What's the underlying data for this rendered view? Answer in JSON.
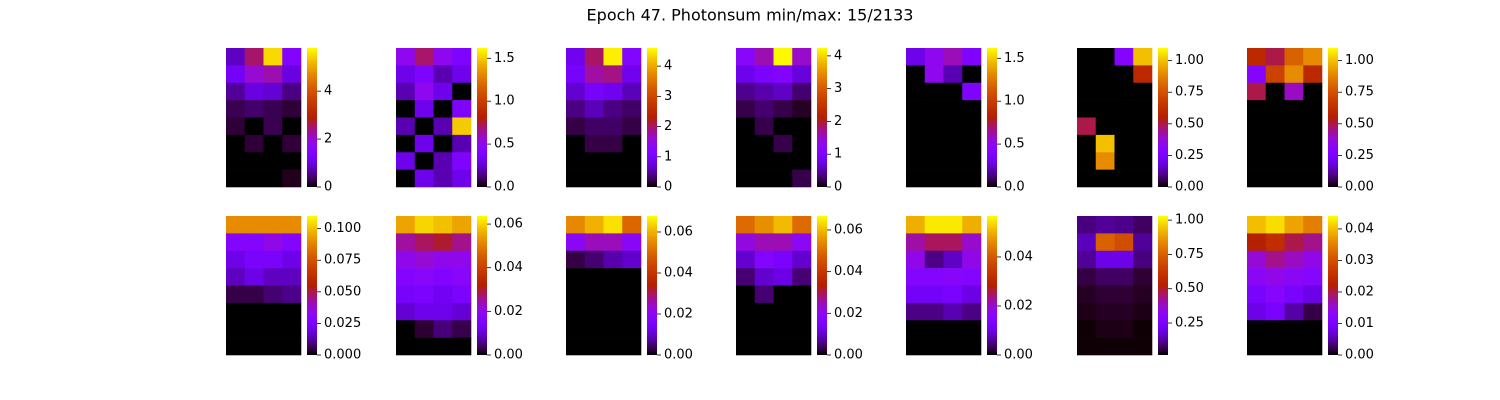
{
  "title": "Epoch 47. Photonsum min/max: 15/2133",
  "chart_data": [
    {
      "type": "heatmap",
      "colormap": "gnuplot",
      "zlim": [
        0,
        5.8
      ],
      "zticks": [
        0,
        2,
        4
      ],
      "values": [
        [
          0.8,
          2.5,
          5.5,
          1.5
        ],
        [
          1.2,
          2.0,
          2.2,
          1.0
        ],
        [
          0.6,
          1.0,
          0.9,
          0.5
        ],
        [
          0.3,
          0.4,
          0.3,
          0.2
        ],
        [
          0.2,
          0,
          0.3,
          0
        ],
        [
          0,
          0.2,
          0,
          0.2
        ],
        [
          0,
          0,
          0,
          0
        ],
        [
          0,
          0,
          0,
          0.1
        ]
      ]
    },
    {
      "type": "heatmap",
      "colormap": "gnuplot",
      "zlim": [
        0,
        1.62
      ],
      "zticks": [
        {
          "value": 0,
          "label": "0.0"
        },
        0.5,
        {
          "value": 1,
          "label": "1.0"
        },
        1.5
      ],
      "values": [
        [
          0.5,
          0.7,
          0.5,
          0.4
        ],
        [
          0.3,
          0.4,
          0.2,
          0.3
        ],
        [
          0.2,
          0.5,
          0.3,
          0
        ],
        [
          0,
          0.3,
          0,
          0.4
        ],
        [
          0.2,
          0,
          0.2,
          1.5
        ],
        [
          0,
          0.3,
          0,
          0.2
        ],
        [
          0.3,
          0,
          0.2,
          0.4
        ],
        [
          0,
          0.3,
          0.2,
          0.3
        ]
      ]
    },
    {
      "type": "heatmap",
      "colormap": "gnuplot",
      "zlim": [
        0,
        4.6
      ],
      "zticks": [
        0,
        1,
        2,
        3,
        4
      ],
      "values": [
        [
          0.9,
          2.0,
          4.5,
          1.2
        ],
        [
          1.0,
          1.8,
          1.9,
          0.9
        ],
        [
          0.7,
          1.0,
          0.9,
          0.6
        ],
        [
          0.4,
          0.6,
          0.4,
          0.3
        ],
        [
          0.2,
          0.3,
          0.3,
          0.2
        ],
        [
          0,
          0.2,
          0.2,
          0
        ],
        [
          0,
          0,
          0,
          0
        ],
        [
          0,
          0,
          0,
          0
        ]
      ]
    },
    {
      "type": "heatmap",
      "colormap": "gnuplot",
      "zlim": [
        0,
        4.24
      ],
      "zticks": [
        0,
        1,
        2,
        3,
        4
      ],
      "values": [
        [
          1.2,
          1.6,
          4.2,
          1.5
        ],
        [
          0.8,
          1.0,
          1.1,
          0.7
        ],
        [
          0.4,
          0.5,
          0.6,
          0.3
        ],
        [
          0.2,
          0.3,
          0.2,
          0.1
        ],
        [
          0,
          0.2,
          0,
          0
        ],
        [
          0,
          0,
          0.2,
          0
        ],
        [
          0,
          0,
          0,
          0
        ],
        [
          0,
          0,
          0,
          0.2
        ]
      ]
    },
    {
      "type": "heatmap",
      "colormap": "gnuplot",
      "zlim": [
        0,
        1.62
      ],
      "zticks": [
        {
          "value": 0,
          "label": "0.0"
        },
        0.5,
        {
          "value": 1,
          "label": "1.0"
        },
        1.5
      ],
      "values": [
        [
          0.3,
          0.5,
          0.6,
          0.4
        ],
        [
          0,
          0.5,
          0.2,
          0
        ],
        [
          0,
          0,
          0,
          0.4
        ],
        [
          0,
          0,
          0,
          0
        ],
        [
          0,
          0,
          0,
          0
        ],
        [
          0,
          0,
          0,
          0
        ],
        [
          0,
          0,
          0,
          0
        ],
        [
          0,
          0,
          0,
          0
        ]
      ]
    },
    {
      "type": "heatmap",
      "colormap": "gnuplot",
      "zlim": [
        0,
        1.1
      ],
      "zticks": [
        {
          "value": 0,
          "label": "0.00"
        },
        0.25,
        {
          "value": 0.5,
          "label": "0.50"
        },
        0.75,
        {
          "value": 1,
          "label": "1.00"
        }
      ],
      "values": [
        [
          0,
          0,
          0.3,
          1.0
        ],
        [
          0,
          0,
          0,
          0.6
        ],
        [
          0,
          0,
          0,
          0
        ],
        [
          0,
          0,
          0,
          0
        ],
        [
          0.5,
          0,
          0,
          0
        ],
        [
          0,
          1.0,
          0,
          0
        ],
        [
          0,
          0.9,
          0,
          0
        ],
        [
          0,
          0,
          0,
          0
        ]
      ]
    },
    {
      "type": "heatmap",
      "colormap": "gnuplot",
      "zlim": [
        0,
        1.1
      ],
      "zticks": [
        {
          "value": 0,
          "label": "0.00"
        },
        0.25,
        {
          "value": 0.5,
          "label": "0.50"
        },
        0.75,
        {
          "value": 1,
          "label": "1.00"
        }
      ],
      "values": [
        [
          0.6,
          0.5,
          0.8,
          0.9
        ],
        [
          0.3,
          0.7,
          0.9,
          0.6
        ],
        [
          0.5,
          0,
          0.4,
          0
        ],
        [
          0,
          0,
          0,
          0
        ],
        [
          0,
          0,
          0,
          0
        ],
        [
          0,
          0,
          0,
          0
        ],
        [
          0,
          0,
          0,
          0
        ],
        [
          0,
          0,
          0,
          0
        ]
      ]
    },
    {
      "type": "heatmap",
      "colormap": "gnuplot",
      "zlim": [
        0,
        0.11
      ],
      "zticks": [
        {
          "value": 0,
          "label": "0.000"
        },
        0.025,
        {
          "value": 0.05,
          "label": "0.050"
        },
        0.075,
        {
          "value": 0.1,
          "label": "0.100"
        }
      ],
      "values": [
        [
          0.09,
          0.09,
          0.09,
          0.09
        ],
        [
          0.03,
          0.03,
          0.035,
          0.03
        ],
        [
          0.02,
          0.025,
          0.025,
          0.02
        ],
        [
          0.015,
          0.02,
          0.015,
          0.015
        ],
        [
          0.005,
          0.005,
          0.008,
          0.01
        ],
        [
          0,
          0,
          0,
          0
        ],
        [
          0,
          0,
          0,
          0
        ],
        [
          0,
          0,
          0,
          0
        ]
      ]
    },
    {
      "type": "heatmap",
      "colormap": "gnuplot",
      "zlim": [
        0,
        0.0637
      ],
      "zticks": [
        {
          "value": 0,
          "label": "0.00"
        },
        0.02,
        0.04,
        0.06
      ],
      "values": [
        [
          0.055,
          0.06,
          0.058,
          0.055
        ],
        [
          0.025,
          0.028,
          0.03,
          0.026
        ],
        [
          0.02,
          0.022,
          0.02,
          0.02
        ],
        [
          0.017,
          0.018,
          0.016,
          0.018
        ],
        [
          0.014,
          0.015,
          0.013,
          0.015
        ],
        [
          0.01,
          0.012,
          0.012,
          0.01
        ],
        [
          0,
          0.002,
          0.005,
          0.003
        ],
        [
          0,
          0,
          0,
          0
        ]
      ]
    },
    {
      "type": "heatmap",
      "colormap": "gnuplot",
      "zlim": [
        0,
        0.0678
      ],
      "zticks": [
        {
          "value": 0,
          "label": "0.00"
        },
        0.02,
        0.04,
        0.06
      ],
      "values": [
        [
          0.055,
          0.06,
          0.065,
          0.05
        ],
        [
          0.02,
          0.025,
          0.025,
          0.02
        ],
        [
          0.003,
          0.005,
          0.008,
          0.01
        ],
        [
          0,
          0,
          0,
          0
        ],
        [
          0,
          0,
          0,
          0
        ],
        [
          0,
          0,
          0,
          0
        ],
        [
          0,
          0,
          0,
          0
        ],
        [
          0,
          0,
          0,
          0
        ]
      ]
    },
    {
      "type": "heatmap",
      "colormap": "gnuplot",
      "zlim": [
        0,
        0.0667
      ],
      "zticks": [
        {
          "value": 0,
          "label": "0.00"
        },
        0.02,
        0.04,
        0.06
      ],
      "values": [
        [
          0.05,
          0.055,
          0.06,
          0.05
        ],
        [
          0.022,
          0.025,
          0.025,
          0.02
        ],
        [
          0.01,
          0.018,
          0.015,
          0.01
        ],
        [
          0.005,
          0.01,
          0.012,
          0.005
        ],
        [
          0,
          0.005,
          0,
          0
        ],
        [
          0,
          0,
          0,
          0
        ],
        [
          0,
          0,
          0,
          0
        ],
        [
          0,
          0,
          0,
          0
        ]
      ]
    },
    {
      "type": "heatmap",
      "colormap": "gnuplot",
      "zlim": [
        0,
        0.0567
      ],
      "zticks": [
        {
          "value": 0,
          "label": "0.00"
        },
        0.02,
        0.04
      ],
      "values": [
        [
          0.05,
          0.055,
          0.055,
          0.05
        ],
        [
          0.022,
          0.025,
          0.025,
          0.02
        ],
        [
          0.018,
          0.005,
          0.008,
          0.018
        ],
        [
          0.015,
          0.015,
          0.016,
          0.015
        ],
        [
          0.012,
          0.012,
          0.013,
          0.01
        ],
        [
          0.005,
          0.005,
          0.007,
          0.005
        ],
        [
          0,
          0,
          0,
          0
        ],
        [
          0,
          0,
          0,
          0
        ]
      ]
    },
    {
      "type": "heatmap",
      "colormap": "gnuplot",
      "zlim": [
        0.017,
        1.03
      ],
      "zticks": [
        0.25,
        {
          "value": 0.5,
          "label": "0.50"
        },
        0.75,
        {
          "value": 1,
          "label": "1.00"
        }
      ],
      "values": [
        [
          0.1,
          0.12,
          0.11,
          0.08
        ],
        [
          0.15,
          0.75,
          0.7,
          0.12
        ],
        [
          0.12,
          0.2,
          0.2,
          0.1
        ],
        [
          0.06,
          0.08,
          0.08,
          0.05
        ],
        [
          0.04,
          0.05,
          0.05,
          0.04
        ],
        [
          0.03,
          0.04,
          0.04,
          0.03
        ],
        [
          0.02,
          0.03,
          0.03,
          0.02
        ],
        [
          0.02,
          0.02,
          0.02,
          0.02
        ]
      ]
    },
    {
      "type": "heatmap",
      "colormap": "gnuplot",
      "zlim": [
        0,
        0.0441
      ],
      "zticks": [
        {
          "value": 0,
          "label": "0.00"
        },
        0.01,
        0.02,
        0.03,
        0.04
      ],
      "values": [
        [
          0.04,
          0.042,
          0.038,
          0.035
        ],
        [
          0.022,
          0.025,
          0.02,
          0.018
        ],
        [
          0.015,
          0.018,
          0.016,
          0.014
        ],
        [
          0.013,
          0.014,
          0.013,
          0.012
        ],
        [
          0.01,
          0.012,
          0.01,
          0.008
        ],
        [
          0.008,
          0.01,
          0.005,
          0.002
        ],
        [
          0,
          0,
          0,
          0
        ],
        [
          0,
          0,
          0,
          0
        ]
      ]
    }
  ]
}
